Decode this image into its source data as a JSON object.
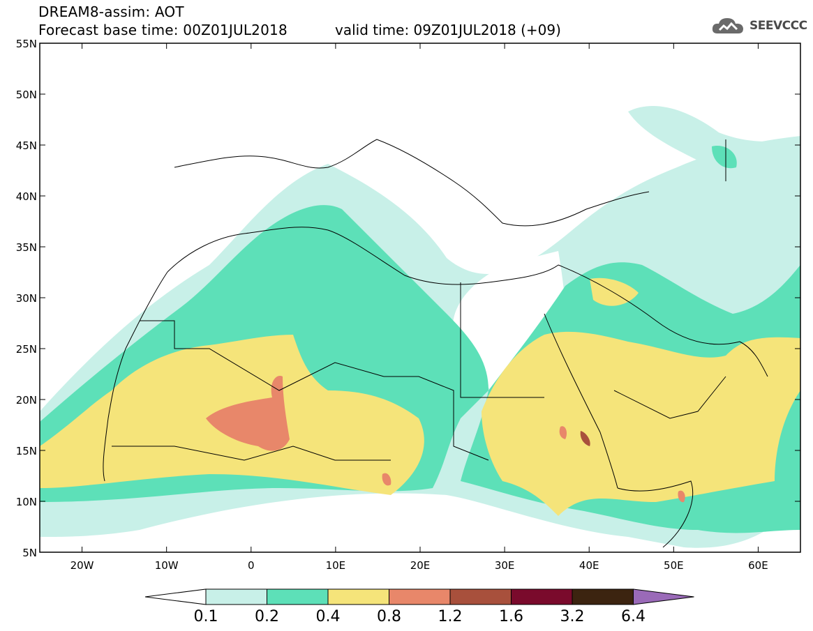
{
  "header": {
    "title": "DREAM8-assim: AOT",
    "base_time": "Forecast base time: 00Z01JUL2018",
    "valid_time": "valid time: 09Z01JUL2018 (+09)",
    "logo_text": "SEEVCCC",
    "logo_icon": "cloud-icon"
  },
  "map": {
    "lon_range": [
      -25,
      65
    ],
    "lat_range": [
      5,
      55
    ],
    "lat_ticks": [
      "55N",
      "50N",
      "45N",
      "40N",
      "35N",
      "30N",
      "25N",
      "20N",
      "15N",
      "10N",
      "5N"
    ],
    "lon_ticks": [
      "20W",
      "10W",
      "0",
      "10E",
      "20E",
      "30E",
      "40E",
      "50E",
      "60E"
    ],
    "variable": "AOT"
  },
  "legend": {
    "levels": [
      "0.1",
      "0.2",
      "0.4",
      "0.8",
      "1.2",
      "1.6",
      "3.2",
      "6.4"
    ],
    "colors": [
      "#ffffff",
      "#c8f0e8",
      "#5de0b8",
      "#f5e47a",
      "#e8876a",
      "#a8503c",
      "#7a0a2c",
      "#3c2410",
      "#9a6ab8"
    ]
  }
}
